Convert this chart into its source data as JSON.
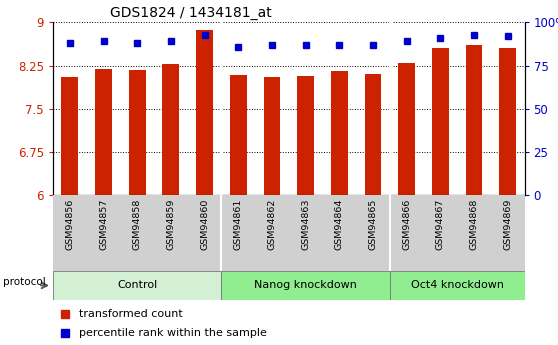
{
  "title": "GDS1824 / 1434181_at",
  "samples": [
    "GSM94856",
    "GSM94857",
    "GSM94858",
    "GSM94859",
    "GSM94860",
    "GSM94861",
    "GSM94862",
    "GSM94863",
    "GSM94864",
    "GSM94865",
    "GSM94866",
    "GSM94867",
    "GSM94868",
    "GSM94869"
  ],
  "transformed_count": [
    8.05,
    8.19,
    8.17,
    8.27,
    8.86,
    8.08,
    8.05,
    8.06,
    8.16,
    8.1,
    8.3,
    8.56,
    8.6,
    8.55
  ],
  "percentile_rank": [
    88,
    89,
    88,
    89,
    93,
    86,
    87,
    87,
    87,
    87,
    89,
    91,
    93,
    92
  ],
  "groups": [
    {
      "label": "Control",
      "start": 0,
      "end": 5
    },
    {
      "label": "Nanog knockdown",
      "start": 5,
      "end": 10
    },
    {
      "label": "Oct4 knockdown",
      "start": 10,
      "end": 14
    }
  ],
  "group_colors": [
    "#d4f0d4",
    "#90ee90",
    "#90ee90"
  ],
  "bar_color": "#cc2200",
  "dot_color": "#0000cc",
  "ylim_left": [
    6,
    9
  ],
  "ylim_right": [
    0,
    100
  ],
  "yticks_left": [
    6,
    6.75,
    7.5,
    8.25,
    9
  ],
  "yticks_right": [
    0,
    25,
    50,
    75,
    100
  ],
  "left_color": "#cc2200",
  "right_color": "#0000cc",
  "tick_bg_color": "#d0d0d0",
  "bar_width": 0.5
}
